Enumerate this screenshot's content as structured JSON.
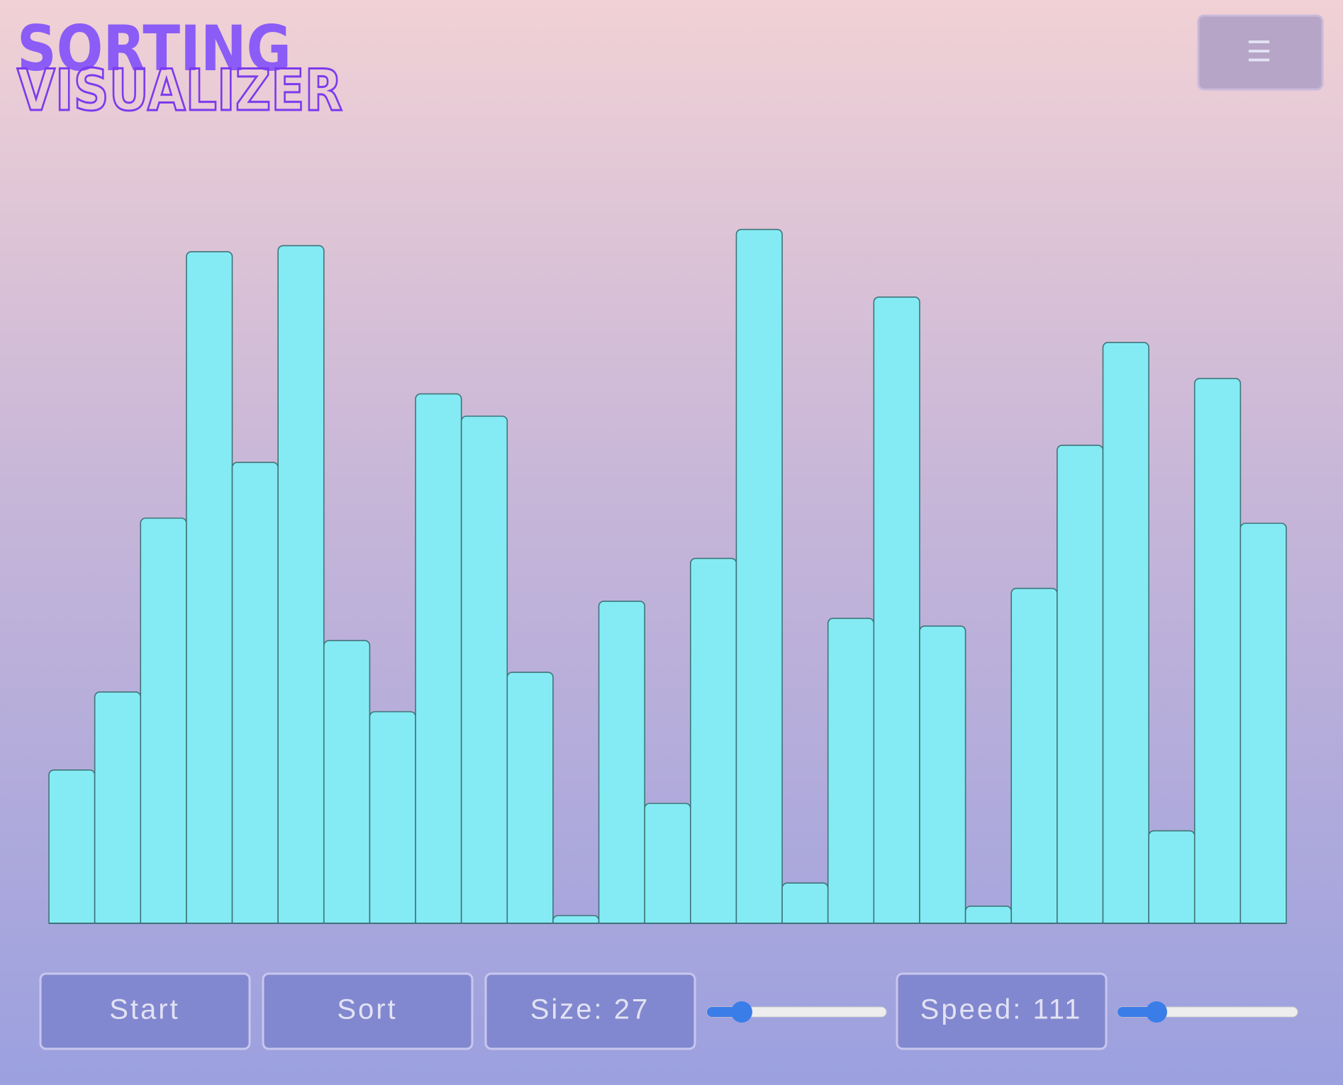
{
  "header": {
    "title_line1": "SORTING",
    "title_line2": "VISUALIZER",
    "menu_icon": "☰"
  },
  "bars": {
    "values": [
      179,
      270,
      473,
      784,
      538,
      791,
      330,
      247,
      618,
      592,
      293,
      9,
      376,
      140,
      426,
      810,
      47,
      356,
      731,
      347,
      20,
      391,
      558,
      678,
      108,
      636,
      467
    ]
  },
  "controls": {
    "start": "Start",
    "sort": "Sort",
    "size": "Size: 27",
    "speed": "Speed: 111"
  }
}
